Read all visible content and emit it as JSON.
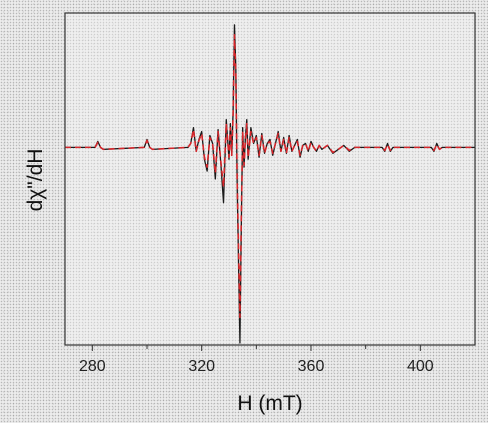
{
  "chart_data": {
    "type": "line",
    "xlabel": "H (mT)",
    "ylabel": "dχ\"/dH",
    "xlim": [
      270,
      420
    ],
    "ylim": [
      -1.0,
      0.68
    ],
    "xticks": [
      280,
      320,
      360,
      400
    ],
    "xtick_labels": [
      "280",
      "320",
      "360",
      "400"
    ],
    "minor_xticks": [
      300,
      340,
      380
    ],
    "y_tick_labels_shown": false,
    "grid": false,
    "legend": "none",
    "series": [
      {
        "style": "solid",
        "color": "#1a1a1a",
        "x": [
          270,
          281,
          282,
          283,
          284,
          299,
          300,
          301,
          302,
          315,
          316,
          317,
          318,
          319,
          320,
          321,
          322,
          323,
          324,
          325,
          326,
          327,
          328,
          329,
          330,
          330.5,
          331,
          331.5,
          332,
          332.5,
          333,
          333.5,
          334,
          334.5,
          335,
          335.5,
          336,
          336.5,
          337,
          338,
          339,
          340,
          341,
          342,
          343,
          344,
          345,
          346,
          347,
          348,
          349,
          350,
          351,
          352,
          353,
          354,
          355,
          356,
          357,
          358,
          359,
          360,
          361,
          362,
          363,
          364,
          366,
          368,
          370,
          372,
          374,
          376,
          380,
          386,
          387,
          388,
          389,
          390,
          404,
          405,
          406,
          407,
          408,
          420
        ],
        "y": [
          0,
          0,
          0.03,
          0,
          -0.01,
          0,
          0.04,
          0,
          -0.01,
          0,
          0.02,
          0.1,
          -0.02,
          0.04,
          0.08,
          -0.06,
          -0.12,
          0.06,
          0.02,
          -0.16,
          0.09,
          -0.08,
          -0.28,
          0.14,
          -0.06,
          0.12,
          -0.04,
          0.18,
          0.62,
          0.4,
          -0.2,
          -0.6,
          -0.99,
          -0.4,
          0.1,
          -0.1,
          0.05,
          0.14,
          -0.06,
          0.1,
          0.02,
          0.06,
          -0.05,
          0.07,
          -0.03,
          0.02,
          0.04,
          -0.04,
          0.02,
          0.08,
          -0.02,
          0.05,
          -0.03,
          0.06,
          -0.02,
          0.01,
          0.04,
          -0.05,
          0.01,
          0.02,
          -0.02,
          0.03,
          0,
          -0.02,
          0.01,
          -0.01,
          0.01,
          -0.03,
          -0.01,
          0.01,
          -0.02,
          0,
          0,
          0,
          -0.02,
          0.02,
          -0.02,
          0,
          0,
          -0.02,
          0.02,
          -0.01,
          0,
          0
        ]
      },
      {
        "style": "dashed",
        "color": "#d6262b",
        "x": [
          270,
          281,
          282,
          283,
          284,
          299,
          300,
          301,
          302,
          315,
          316,
          317,
          318,
          319,
          320,
          321,
          322,
          323,
          324,
          325,
          326,
          327,
          328,
          329,
          330,
          330.5,
          331,
          331.5,
          332,
          332.5,
          333,
          333.5,
          334,
          334.5,
          335,
          335.5,
          336,
          336.5,
          337,
          338,
          339,
          340,
          341,
          342,
          343,
          344,
          345,
          346,
          347,
          348,
          349,
          350,
          351,
          352,
          353,
          354,
          355,
          356,
          357,
          358,
          359,
          360,
          361,
          362,
          363,
          364,
          366,
          368,
          370,
          372,
          374,
          376,
          380,
          386,
          387,
          388,
          389,
          390,
          404,
          405,
          406,
          407,
          408,
          420
        ],
        "y": [
          0,
          0,
          0.025,
          0,
          -0.01,
          0,
          0.035,
          0,
          -0.01,
          0,
          0.02,
          0.09,
          -0.02,
          0.035,
          0.07,
          -0.05,
          -0.1,
          0.05,
          0.02,
          -0.13,
          0.08,
          -0.07,
          -0.2,
          0.12,
          -0.05,
          0.1,
          -0.04,
          0.16,
          0.57,
          0.37,
          -0.18,
          -0.52,
          -0.86,
          -0.35,
          0.08,
          -0.09,
          0.04,
          0.12,
          -0.05,
          0.08,
          0.02,
          0.05,
          -0.04,
          0.06,
          -0.03,
          0.02,
          0.03,
          -0.03,
          0.02,
          0.07,
          -0.02,
          0.04,
          -0.03,
          0.05,
          -0.02,
          0.01,
          0.03,
          -0.04,
          0.01,
          0.02,
          -0.02,
          0.025,
          0,
          -0.02,
          0.01,
          -0.01,
          0.01,
          -0.025,
          -0.01,
          0.01,
          -0.015,
          0,
          0,
          0,
          -0.015,
          0.015,
          -0.015,
          0,
          0,
          -0.015,
          0.015,
          -0.01,
          0,
          0
        ]
      }
    ]
  }
}
